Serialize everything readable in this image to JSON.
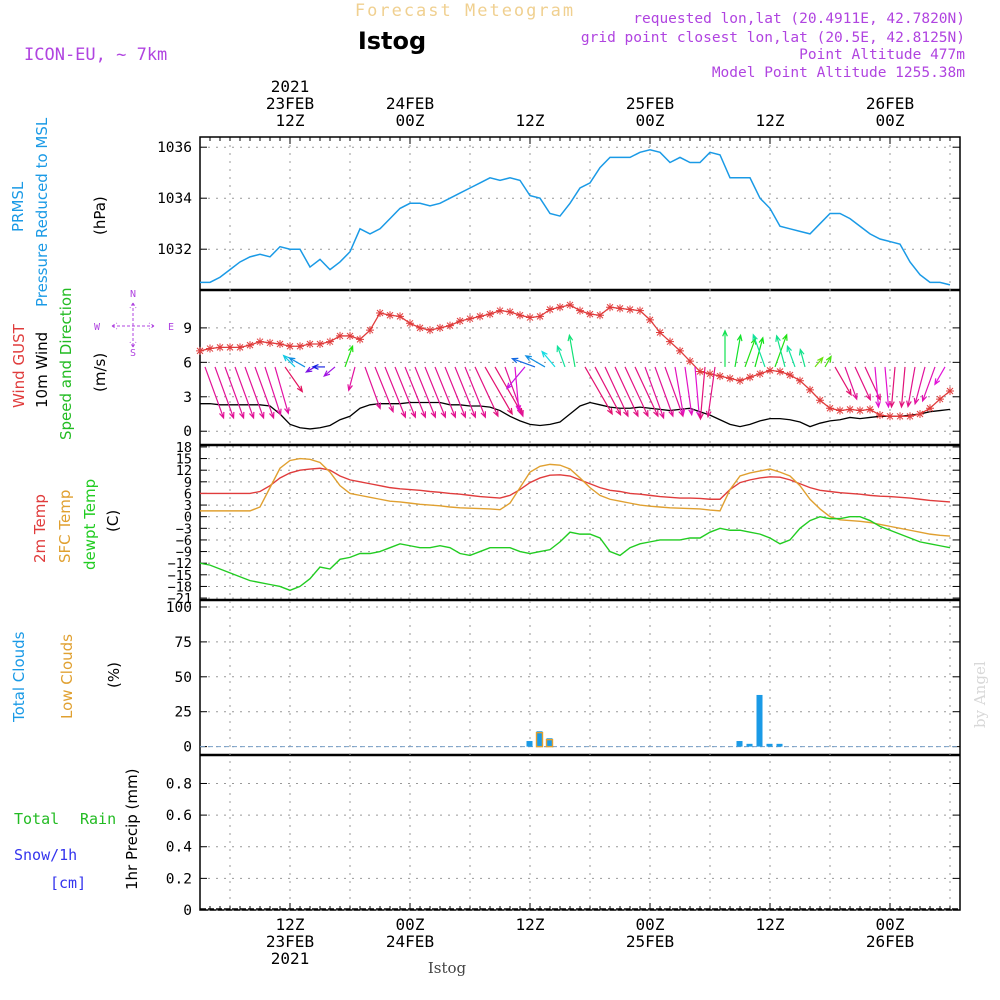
{
  "header": {
    "title": "Forecast Meteogram",
    "station": "Istog",
    "model": "ICON-EU, ~ 7km",
    "requested": "requested lon,lat (20.4911E, 42.7820N)",
    "grid_point": "grid point closest lon,lat (20.5E, 42.8125N)",
    "point_altitude": "Point Altitude 477m",
    "model_altitude": "Model Point Altitude 1255.38m",
    "footer_station": "Istog",
    "watermark": "by Angel"
  },
  "colors": {
    "pressure": "#1a9ae6",
    "gust": "#e03c3c",
    "wind": "#000000",
    "windLabel": "#22bb22",
    "temp2m": "#e03c3c",
    "sfc": "#e0a030",
    "dewpt": "#22cc22",
    "total_clouds": "#1a9ae6",
    "low_clouds": "#e0a030",
    "rain": "#22bb22",
    "snow": "#3333ee",
    "purple": "#b044e0",
    "title": "#f0d090"
  },
  "time_axis": {
    "top_labels": [
      {
        "t": 9,
        "lines": [
          "2021",
          "23FEB",
          "12Z"
        ]
      },
      {
        "t": 21,
        "lines": [
          "24FEB",
          "00Z"
        ]
      },
      {
        "t": 33,
        "lines": [
          "12Z"
        ]
      },
      {
        "t": 45,
        "lines": [
          "25FEB",
          "00Z"
        ]
      },
      {
        "t": 57,
        "lines": [
          "12Z"
        ]
      },
      {
        "t": 69,
        "lines": [
          "26FEB",
          "00Z"
        ]
      }
    ],
    "bottom_labels": [
      {
        "t": 9,
        "lines": [
          "12Z",
          "23FEB",
          "2021"
        ]
      },
      {
        "t": 21,
        "lines": [
          "00Z",
          "24FEB"
        ]
      },
      {
        "t": 33,
        "lines": [
          "12Z"
        ]
      },
      {
        "t": 45,
        "lines": [
          "00Z",
          "25FEB"
        ]
      },
      {
        "t": 57,
        "lines": [
          "12Z"
        ]
      },
      {
        "t": 69,
        "lines": [
          "00Z",
          "26FEB"
        ]
      }
    ]
  },
  "panels": {
    "pressure": {
      "labels": [
        "PRMSL",
        "Pressure Reduced to MSL"
      ],
      "unit": "(hPa)",
      "ticks": [
        "1032",
        "1034",
        "1036"
      ]
    },
    "wind": {
      "gust_label": "Wind GUST",
      "wind_label": "10m Wind",
      "dir_label": "Speed and Direction",
      "unit": "(m/s)",
      "ticks": [
        "0",
        "3",
        "6",
        "9"
      ],
      "compass": {
        "n": "N",
        "s": "S",
        "w": "W",
        "e": "E"
      }
    },
    "temp": {
      "labels": [
        "2m Temp",
        "SFC Temp",
        "dewpt Temp"
      ],
      "unit": "(C)",
      "ticks": [
        "18",
        "15",
        "12",
        "9",
        "6",
        "3",
        "0",
        "−3",
        "−6",
        "−9",
        "−12",
        "−15",
        "−18",
        "−21"
      ]
    },
    "clouds": {
      "labels": [
        "Total Clouds",
        "Low Clouds"
      ],
      "unit": "(%)",
      "ticks": [
        "0",
        "25",
        "50",
        "75",
        "100"
      ]
    },
    "precip": {
      "labels": [
        "Total",
        "Rain",
        "Snow/1h",
        "[cm]"
      ],
      "unit": "1hr Precip (mm)",
      "ticks": [
        "0",
        "0.2",
        "0.4",
        "0.6",
        "0.8"
      ]
    }
  },
  "chart_data": {
    "type": "line",
    "x_unit": "hours from 2021-02-23 03Z",
    "xlim": [
      0,
      76
    ],
    "pressure": {
      "ylim": [
        1030.4,
        1036.4
      ],
      "x": [
        0,
        1,
        2,
        3,
        4,
        5,
        6,
        7,
        8,
        9,
        10,
        11,
        12,
        13,
        14,
        15,
        16,
        17,
        18,
        19,
        20,
        21,
        22,
        23,
        24,
        25,
        26,
        27,
        28,
        29,
        30,
        31,
        32,
        33,
        34,
        35,
        36,
        37,
        38,
        39,
        40,
        41,
        42,
        43,
        44,
        45,
        46,
        47,
        48,
        49,
        50,
        51,
        52,
        53,
        54,
        55,
        56,
        57,
        58,
        59,
        60,
        61,
        62,
        63,
        64,
        65,
        66,
        67,
        68,
        69,
        70,
        71,
        72,
        73,
        74,
        75
      ],
      "y": [
        1030.7,
        1030.7,
        1030.9,
        1031.2,
        1031.5,
        1031.7,
        1031.8,
        1031.7,
        1032.1,
        1032.0,
        1032.0,
        1031.3,
        1031.6,
        1031.2,
        1031.5,
        1031.9,
        1032.8,
        1032.6,
        1032.8,
        1033.2,
        1033.6,
        1033.8,
        1033.8,
        1033.7,
        1033.8,
        1034.0,
        1034.2,
        1034.4,
        1034.6,
        1034.8,
        1034.7,
        1034.8,
        1034.7,
        1034.1,
        1034.0,
        1033.4,
        1033.3,
        1033.8,
        1034.4,
        1034.6,
        1035.2,
        1035.6,
        1035.6,
        1035.6,
        1035.8,
        1035.9,
        1035.8,
        1035.4,
        1035.6,
        1035.4,
        1035.4,
        1035.8,
        1035.7,
        1034.8,
        1034.8,
        1034.8,
        1034.0,
        1033.6,
        1032.9,
        1032.8,
        1032.7,
        1032.6,
        1033.0,
        1033.4,
        1033.4,
        1033.2,
        1032.9,
        1032.6,
        1032.4,
        1032.3,
        1032.2,
        1031.5,
        1031.0,
        1030.7,
        1030.7,
        1030.6
      ]
    },
    "wind": {
      "ylim": [
        -1.2,
        12.3
      ],
      "gust": [
        7.0,
        7.2,
        7.3,
        7.3,
        7.3,
        7.5,
        7.8,
        7.7,
        7.6,
        7.4,
        7.4,
        7.6,
        7.6,
        7.8,
        8.3,
        8.3,
        8.0,
        8.8,
        10.3,
        10.1,
        10.0,
        9.4,
        9.0,
        8.8,
        9.0,
        9.2,
        9.6,
        9.8,
        10.0,
        10.2,
        10.5,
        10.4,
        10.1,
        9.9,
        10.0,
        10.6,
        10.8,
        11.0,
        10.5,
        10.2,
        10.1,
        10.8,
        10.7,
        10.6,
        10.5,
        9.7,
        8.6,
        7.8,
        7.0,
        6.1,
        5.2,
        5.0,
        4.8,
        4.6,
        4.4,
        4.7,
        5.0,
        5.3,
        5.2,
        4.9,
        4.4,
        3.6,
        2.7,
        2.0,
        1.8,
        1.9,
        1.8,
        1.9,
        1.4,
        1.3,
        1.3,
        1.3,
        1.5,
        2.0,
        2.8,
        3.5
      ],
      "speed": [
        2.4,
        2.4,
        2.3,
        2.3,
        2.3,
        2.3,
        2.3,
        2.2,
        1.5,
        0.6,
        0.3,
        0.2,
        0.3,
        0.5,
        1.0,
        1.3,
        2.0,
        2.3,
        2.4,
        2.4,
        2.4,
        2.5,
        2.5,
        2.5,
        2.5,
        2.3,
        2.3,
        2.2,
        2.2,
        2.1,
        1.8,
        1.3,
        0.9,
        0.6,
        0.5,
        0.6,
        0.8,
        1.5,
        2.2,
        2.5,
        2.3,
        2.1,
        2.0,
        2.0,
        2.1,
        2.0,
        1.9,
        1.8,
        1.9,
        2.0,
        1.7,
        1.4,
        1.0,
        0.6,
        0.4,
        0.6,
        0.9,
        1.1,
        1.1,
        1.0,
        0.8,
        0.4,
        0.7,
        0.9,
        1.0,
        1.2,
        1.1,
        1.2,
        1.3,
        1.3,
        1.3,
        1.4,
        1.5,
        1.7,
        1.8,
        1.9
      ],
      "barbs": [
        {
          "x": 0.5,
          "dir": 20,
          "len": 2.7
        },
        {
          "x": 1.5,
          "dir": 20,
          "len": 2.7
        },
        {
          "x": 2.5,
          "dir": 20,
          "len": 2.7
        },
        {
          "x": 3.5,
          "dir": 20,
          "len": 2.7
        },
        {
          "x": 4.5,
          "dir": 20,
          "len": 2.7
        },
        {
          "x": 5.5,
          "dir": 20,
          "len": 2.7
        },
        {
          "x": 6.5,
          "dir": 18,
          "len": 2.5
        },
        {
          "x": 7.5,
          "dir": 16,
          "len": 2.4
        },
        {
          "x": 8.5,
          "dir": 35,
          "len": 1.5
        },
        {
          "x": 9.5,
          "dir": 225,
          "len": 0.8
        },
        {
          "x": 10.5,
          "dir": 240,
          "len": 0.9
        },
        {
          "x": 11.5,
          "dir": 300,
          "len": 0.5
        },
        {
          "x": 12.5,
          "dir": 270,
          "len": 0.6
        },
        {
          "x": 13.5,
          "dir": 310,
          "len": 0.7
        },
        {
          "x": 14.5,
          "dir": 160,
          "len": 1.1
        },
        {
          "x": 15.5,
          "dir": 345,
          "len": 1.2
        },
        {
          "x": 16.5,
          "dir": 20,
          "len": 2.2
        },
        {
          "x": 17.5,
          "dir": 22,
          "len": 2.4
        },
        {
          "x": 18.5,
          "dir": 22,
          "len": 2.7
        },
        {
          "x": 19.5,
          "dir": 22,
          "len": 2.7
        },
        {
          "x": 20.5,
          "dir": 22,
          "len": 2.7
        },
        {
          "x": 21.5,
          "dir": 22,
          "len": 2.7
        },
        {
          "x": 22.5,
          "dir": 22,
          "len": 2.7
        },
        {
          "x": 23.5,
          "dir": 22,
          "len": 2.7
        },
        {
          "x": 24.5,
          "dir": 22,
          "len": 2.7
        },
        {
          "x": 25.5,
          "dir": 22,
          "len": 2.7
        },
        {
          "x": 26.5,
          "dir": 22,
          "len": 2.7
        },
        {
          "x": 27.5,
          "dir": 25,
          "len": 2.7
        },
        {
          "x": 28.5,
          "dir": 30,
          "len": 2.7
        },
        {
          "x": 29.5,
          "dir": 30,
          "len": 2.7
        },
        {
          "x": 30.5,
          "dir": 20,
          "len": 2.6
        },
        {
          "x": 31.5,
          "dir": 5,
          "len": 2.2
        },
        {
          "x": 32.5,
          "dir": 320,
          "len": 1.4
        },
        {
          "x": 33.5,
          "dir": 250,
          "len": 1.2
        },
        {
          "x": 34.5,
          "dir": 240,
          "len": 1.1
        },
        {
          "x": 35.5,
          "dir": 220,
          "len": 1.0
        },
        {
          "x": 36.5,
          "dir": 200,
          "len": 1.1
        },
        {
          "x": 37.5,
          "dir": 190,
          "len": 1.6
        },
        {
          "x": 38.5,
          "dir": 30,
          "len": 2.7
        },
        {
          "x": 39.5,
          "dir": 28,
          "len": 2.7
        },
        {
          "x": 40.5,
          "dir": 25,
          "len": 2.7
        },
        {
          "x": 41.5,
          "dir": 25,
          "len": 2.7
        },
        {
          "x": 42.5,
          "dir": 25,
          "len": 2.7
        },
        {
          "x": 43.5,
          "dir": 25,
          "len": 2.7
        },
        {
          "x": 44.5,
          "dir": 20,
          "len": 2.7
        },
        {
          "x": 45.5,
          "dir": 20,
          "len": 2.6
        },
        {
          "x": 46.5,
          "dir": 20,
          "len": 2.6
        },
        {
          "x": 47.5,
          "dir": 10,
          "len": 2.4
        },
        {
          "x": 48.5,
          "dir": 8,
          "len": 2.4
        },
        {
          "x": 49.5,
          "dir": 5,
          "len": 2.5
        },
        {
          "x": 50.5,
          "dir": 355,
          "len": 2.6
        },
        {
          "x": 51.5,
          "dir": 352,
          "len": 2.5
        },
        {
          "x": 52.5,
          "dir": 180,
          "len": 1.8
        },
        {
          "x": 53.5,
          "dir": 170,
          "len": 1.6
        },
        {
          "x": 54.5,
          "dir": 160,
          "len": 1.5
        },
        {
          "x": 55.5,
          "dir": 165,
          "len": 1.5
        },
        {
          "x": 56.5,
          "dir": 200,
          "len": 1.7
        },
        {
          "x": 57.5,
          "dir": 160,
          "len": 1.7
        },
        {
          "x": 58.5,
          "dir": 195,
          "len": 1.6
        },
        {
          "x": 59.5,
          "dir": 200,
          "len": 1.1
        },
        {
          "x": 60.5,
          "dir": 195,
          "len": 0.9
        },
        {
          "x": 61.5,
          "dir": 140,
          "len": 0.6
        },
        {
          "x": 62.5,
          "dir": 150,
          "len": 0.6
        },
        {
          "x": 63.5,
          "dir": 30,
          "len": 1.6
        },
        {
          "x": 64.5,
          "dir": 20,
          "len": 1.7
        },
        {
          "x": 65.5,
          "dir": 25,
          "len": 1.8
        },
        {
          "x": 66.5,
          "dir": 25,
          "len": 1.8
        },
        {
          "x": 67.5,
          "dir": 5,
          "len": 2.0
        },
        {
          "x": 68.5,
          "dir": 5,
          "len": 2.0
        },
        {
          "x": 69.5,
          "dir": 355,
          "len": 2.0
        },
        {
          "x": 70.5,
          "dir": 355,
          "len": 2.0
        },
        {
          "x": 71.5,
          "dir": 350,
          "len": 2.0
        },
        {
          "x": 72.5,
          "dir": 345,
          "len": 1.9
        },
        {
          "x": 73.5,
          "dir": 340,
          "len": 1.8
        },
        {
          "x": 74.5,
          "dir": 330,
          "len": 1.0
        }
      ]
    },
    "temperature": {
      "ylim": [
        -21.5,
        18.5
      ],
      "t2m": [
        6,
        6,
        6,
        6,
        6,
        6,
        6.5,
        8,
        10,
        11.3,
        12,
        12.3,
        12.5,
        12,
        10.5,
        9.5,
        9,
        8.5,
        8,
        7.5,
        7.2,
        7,
        6.8,
        6.5,
        6.3,
        6,
        5.8,
        5.5,
        5.2,
        5,
        4.8,
        5.5,
        7,
        8.8,
        10,
        10.7,
        10.8,
        10.5,
        9.5,
        8.5,
        7.5,
        6.8,
        6.5,
        6,
        5.8,
        5.5,
        5.2,
        5,
        4.8,
        4.8,
        4.7,
        4.5,
        4.5,
        7,
        8.8,
        9.5,
        10,
        10.3,
        10.2,
        9.5,
        8.5,
        7.5,
        6.8,
        6.5,
        6.2,
        6,
        5.8,
        5.5,
        5.3,
        5.2,
        5,
        4.8,
        4.5,
        4.2,
        4,
        3.8
      ],
      "sfc": [
        1.5,
        1.5,
        1.5,
        1.5,
        1.5,
        1.5,
        2.5,
        7.5,
        12.5,
        14.5,
        15,
        14.8,
        14,
        11.5,
        8,
        6,
        5.5,
        5,
        4.5,
        4,
        3.8,
        3.5,
        3.2,
        3,
        2.8,
        2.5,
        2.3,
        2.2,
        2.1,
        2,
        1.8,
        3.5,
        7.5,
        11.5,
        13,
        13.5,
        13.3,
        12.3,
        10,
        7.5,
        5.5,
        4.5,
        4,
        3.5,
        3,
        2.7,
        2.5,
        2.3,
        2.2,
        2.1,
        2,
        1.7,
        1.5,
        7,
        10.5,
        11.3,
        11.8,
        12.3,
        11.5,
        10.5,
        8,
        4.5,
        2,
        0,
        -0.8,
        -1,
        -1.2,
        -1.5,
        -2,
        -2.5,
        -3,
        -3.5,
        -4,
        -4.5,
        -4.8,
        -5
      ],
      "dewpt": [
        -12,
        -12.5,
        -13.5,
        -14.5,
        -15.5,
        -16.5,
        -17,
        -17.5,
        -18,
        -19,
        -18,
        -16,
        -13,
        -13.5,
        -11,
        -10.5,
        -9.5,
        -9.5,
        -9,
        -8,
        -7,
        -7.5,
        -8,
        -8,
        -7.5,
        -8,
        -9.5,
        -10,
        -9,
        -8,
        -8,
        -8,
        -9,
        -9.5,
        -9,
        -8.5,
        -6.5,
        -4,
        -4.5,
        -4.5,
        -5.5,
        -9,
        -10,
        -8,
        -7,
        -6.5,
        -6,
        -6,
        -6,
        -5.5,
        -5.5,
        -4,
        -3,
        -3.5,
        -3.5,
        -4,
        -4.5,
        -5.5,
        -7,
        -6,
        -3,
        -1,
        0,
        -0.5,
        -0.5,
        0,
        0,
        -1,
        -2.5,
        -3.5,
        -4.5,
        -5.5,
        -6.5,
        -7,
        -7.5,
        -8
      ]
    },
    "clouds": {
      "ylim": [
        -6,
        105
      ],
      "total": [
        {
          "x": 33,
          "v": 4
        },
        {
          "x": 34,
          "v": 11
        },
        {
          "x": 35,
          "v": 6
        },
        {
          "x": 54,
          "v": 4
        },
        {
          "x": 55,
          "v": 2
        },
        {
          "x": 56,
          "v": 37
        },
        {
          "x": 57,
          "v": 2
        },
        {
          "x": 58,
          "v": 2
        }
      ],
      "low": [
        {
          "x": 33,
          "v": 0
        },
        {
          "x": 34,
          "v": 10
        },
        {
          "x": 35,
          "v": 5
        },
        {
          "x": 54,
          "v": 0
        },
        {
          "x": 55,
          "v": 0
        },
        {
          "x": 56,
          "v": 0
        },
        {
          "x": 57,
          "v": 0
        },
        {
          "x": 58,
          "v": 0
        }
      ]
    },
    "precip": {
      "ylim": [
        0,
        0.98
      ],
      "rain": [],
      "snow": []
    }
  }
}
